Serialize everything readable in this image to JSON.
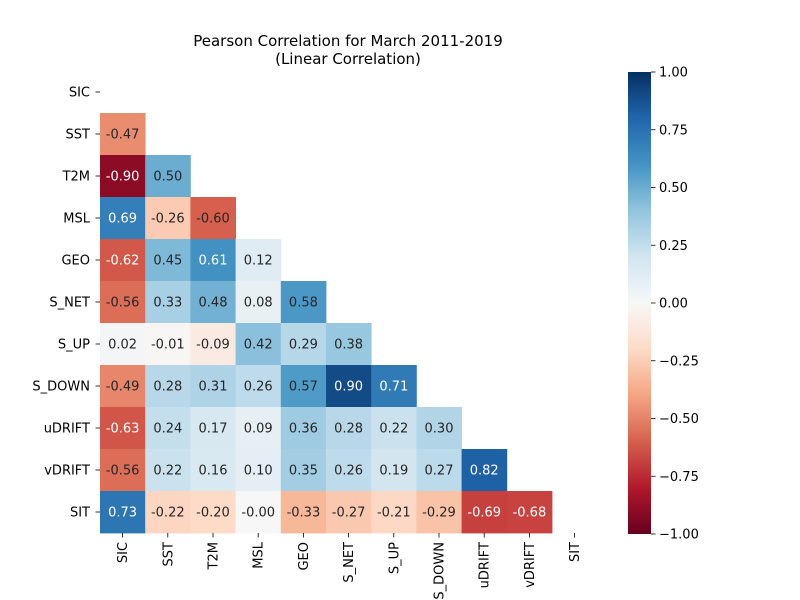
{
  "chart_data": {
    "type": "heatmap",
    "title": "Pearson Correlation for March 2011-2019",
    "subtitle": "(Linear Correlation)",
    "variables": [
      "SIC",
      "SST",
      "T2M",
      "MSL",
      "GEO",
      "S_NET",
      "S_UP",
      "S_DOWN",
      "uDRIFT",
      "vDRIFT",
      "SIT"
    ],
    "mask": "upper triangle including diagonal",
    "cells": [
      [
        "SST",
        "SIC",
        -0.47
      ],
      [
        "T2M",
        "SIC",
        -0.9
      ],
      [
        "T2M",
        "SST",
        0.5
      ],
      [
        "MSL",
        "SIC",
        0.69
      ],
      [
        "MSL",
        "SST",
        -0.26
      ],
      [
        "MSL",
        "T2M",
        -0.6
      ],
      [
        "GEO",
        "SIC",
        -0.62
      ],
      [
        "GEO",
        "SST",
        0.45
      ],
      [
        "GEO",
        "T2M",
        0.61
      ],
      [
        "GEO",
        "MSL",
        0.12
      ],
      [
        "S_NET",
        "SIC",
        -0.56
      ],
      [
        "S_NET",
        "SST",
        0.33
      ],
      [
        "S_NET",
        "T2M",
        0.48
      ],
      [
        "S_NET",
        "MSL",
        0.08
      ],
      [
        "S_NET",
        "GEO",
        0.58
      ],
      [
        "S_UP",
        "SIC",
        0.02
      ],
      [
        "S_UP",
        "SST",
        -0.01
      ],
      [
        "S_UP",
        "T2M",
        -0.09
      ],
      [
        "S_UP",
        "MSL",
        0.42
      ],
      [
        "S_UP",
        "GEO",
        0.29
      ],
      [
        "S_UP",
        "S_NET",
        0.38
      ],
      [
        "S_DOWN",
        "SIC",
        -0.49
      ],
      [
        "S_DOWN",
        "SST",
        0.28
      ],
      [
        "S_DOWN",
        "T2M",
        0.31
      ],
      [
        "S_DOWN",
        "MSL",
        0.26
      ],
      [
        "S_DOWN",
        "GEO",
        0.57
      ],
      [
        "S_DOWN",
        "S_NET",
        0.9
      ],
      [
        "S_DOWN",
        "S_UP",
        0.71
      ],
      [
        "uDRIFT",
        "SIC",
        -0.63
      ],
      [
        "uDRIFT",
        "SST",
        0.24
      ],
      [
        "uDRIFT",
        "T2M",
        0.17
      ],
      [
        "uDRIFT",
        "MSL",
        0.09
      ],
      [
        "uDRIFT",
        "GEO",
        0.36
      ],
      [
        "uDRIFT",
        "S_NET",
        0.28
      ],
      [
        "uDRIFT",
        "S_UP",
        0.22
      ],
      [
        "uDRIFT",
        "S_DOWN",
        0.3
      ],
      [
        "vDRIFT",
        "SIC",
        -0.56
      ],
      [
        "vDRIFT",
        "SST",
        0.22
      ],
      [
        "vDRIFT",
        "T2M",
        0.16
      ],
      [
        "vDRIFT",
        "MSL",
        0.1
      ],
      [
        "vDRIFT",
        "GEO",
        0.35
      ],
      [
        "vDRIFT",
        "S_NET",
        0.26
      ],
      [
        "vDRIFT",
        "S_UP",
        0.19
      ],
      [
        "vDRIFT",
        "S_DOWN",
        0.27
      ],
      [
        "vDRIFT",
        "uDRIFT",
        0.82
      ],
      [
        "SIT",
        "SIC",
        0.73
      ],
      [
        "SIT",
        "SST",
        -0.22
      ],
      [
        "SIT",
        "T2M",
        -0.2
      ],
      [
        "SIT",
        "MSL",
        -0.0
      ],
      [
        "SIT",
        "GEO",
        -0.33
      ],
      [
        "SIT",
        "S_NET",
        -0.27
      ],
      [
        "SIT",
        "S_UP",
        -0.21
      ],
      [
        "SIT",
        "S_DOWN",
        -0.29
      ],
      [
        "SIT",
        "uDRIFT",
        -0.69
      ],
      [
        "SIT",
        "vDRIFT",
        -0.68
      ]
    ],
    "value_format": "two decimals",
    "colorbar": {
      "colormap": "RdBu",
      "vmin": -1.0,
      "vmax": 1.0,
      "ticks": [
        1.0,
        0.75,
        0.5,
        0.25,
        0.0,
        -0.25,
        -0.5,
        -0.75,
        -1.0
      ],
      "tick_labels": [
        "1.00",
        "0.75",
        "0.50",
        "0.25",
        "0.00",
        "−0.25",
        "−0.50",
        "−0.75",
        "−1.00"
      ]
    },
    "xlabel": "",
    "ylabel": "",
    "grid": false,
    "legend": "colorbar on right"
  }
}
